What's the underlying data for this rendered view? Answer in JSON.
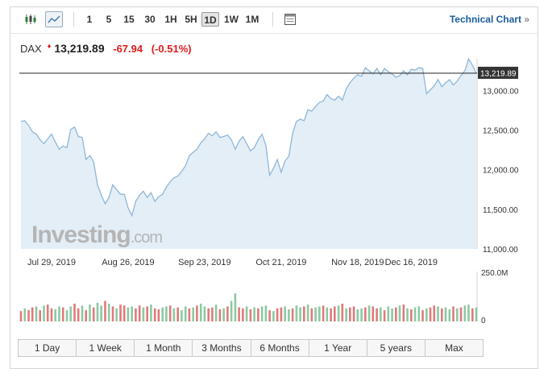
{
  "toolbar": {
    "icons": [
      "candlestick-icon",
      "line-chart-icon",
      "table-icon"
    ],
    "intervals": [
      "1",
      "5",
      "15",
      "30",
      "1H",
      "5H",
      "1D",
      "1W",
      "1M"
    ],
    "selected_interval": "1D",
    "technical_chart_label": "Technical Chart",
    "technical_chart_arrow": "»"
  },
  "quote": {
    "symbol": "DAX",
    "last": "13,219.89",
    "change": "-67.94",
    "change_pct": "(-0.51%)",
    "arrow": "♦",
    "color_negative": "#e01b1b"
  },
  "watermark": {
    "brand": "Investing",
    "suffix": ".com"
  },
  "chart_data": {
    "type": "area",
    "title": "",
    "xlabel": "",
    "ylabel": "",
    "x_tick_labels": [
      "Jul 29, 2019",
      "Aug 26, 2019",
      "Sep 23, 2019",
      "Oct 21, 2019",
      "Nov 18, 2019",
      "Dec 16, 2019"
    ],
    "x_tick_index": [
      8,
      28,
      48,
      68,
      88,
      102
    ],
    "y_tick_values": [
      11000,
      11500,
      12000,
      12500,
      13000
    ],
    "y_tick_labels": [
      "11,000.00",
      "11,500.00",
      "12,000.00",
      "12,500.00",
      "13,000.00"
    ],
    "ylim": [
      11000,
      13300
    ],
    "current_value": 13219.89,
    "current_label": "13,219.89",
    "values": [
      12610,
      12620,
      12560,
      12480,
      12450,
      12380,
      12330,
      12390,
      12450,
      12350,
      12260,
      12300,
      12280,
      12510,
      12540,
      12420,
      12410,
      12130,
      12180,
      12100,
      11810,
      11680,
      11570,
      11650,
      11810,
      11750,
      11690,
      11690,
      11520,
      11420,
      11600,
      11680,
      11730,
      11650,
      11710,
      11600,
      11660,
      11690,
      11780,
      11850,
      11900,
      11920,
      11980,
      12050,
      12180,
      12220,
      12260,
      12340,
      12390,
      12460,
      12430,
      12480,
      12410,
      12420,
      12440,
      12380,
      12260,
      12360,
      12420,
      12330,
      12240,
      12280,
      12380,
      12450,
      12310,
      11930,
      12020,
      12130,
      11970,
      12110,
      12170,
      12460,
      12610,
      12640,
      12620,
      12760,
      12740,
      12800,
      12850,
      12870,
      12950,
      12900,
      12880,
      12930,
      12880,
      13020,
      13100,
      13160,
      13200,
      13180,
      13290,
      13250,
      13210,
      13280,
      13200,
      13280,
      13240,
      13210,
      13170,
      13190,
      13250,
      13200,
      13270,
      13260,
      13290,
      13280,
      12960,
      13010,
      13060,
      13140,
      13050,
      13100,
      13140,
      13070,
      13120,
      13190,
      13250,
      13400,
      13320,
      13219.89
    ],
    "volume": {
      "tick_labels": [
        "250.0M",
        "0"
      ],
      "ylim": [
        0,
        250
      ],
      "values": [
        55,
        70,
        60,
        75,
        80,
        60,
        85,
        90,
        70,
        65,
        80,
        75,
        60,
        80,
        95,
        70,
        85,
        60,
        90,
        75,
        100,
        85,
        110,
        95,
        80,
        70,
        90,
        85,
        75,
        80,
        70,
        85,
        75,
        80,
        90,
        70,
        65,
        75,
        80,
        85,
        70,
        75,
        60,
        80,
        70,
        75,
        85,
        95,
        80,
        70,
        75,
        90,
        65,
        70,
        80,
        110,
        150,
        75,
        70,
        80,
        65,
        75,
        70,
        80,
        85,
        60,
        55,
        70,
        75,
        80,
        65,
        70,
        85,
        75,
        80,
        90,
        70,
        75,
        80,
        85,
        75,
        70,
        80,
        85,
        95,
        70,
        75,
        80,
        65,
        70,
        75,
        85,
        80,
        70,
        75,
        60,
        80,
        70,
        75,
        85,
        90,
        70,
        65,
        75,
        80,
        60,
        70,
        75,
        85,
        80,
        70,
        75,
        65,
        80,
        70,
        75,
        85,
        90,
        70,
        75
      ],
      "colors": [
        "r",
        "g",
        "r",
        "r",
        "g",
        "r",
        "g",
        "r",
        "r",
        "g",
        "g",
        "r",
        "g",
        "g",
        "r",
        "r",
        "g",
        "r",
        "g",
        "r",
        "g",
        "g",
        "r",
        "g",
        "r",
        "g",
        "r",
        "r",
        "g",
        "g",
        "r",
        "r",
        "g",
        "r",
        "g",
        "r",
        "r",
        "g",
        "g",
        "r",
        "g",
        "r",
        "g",
        "g",
        "r",
        "g",
        "r",
        "g",
        "g",
        "r",
        "r",
        "g",
        "r",
        "g",
        "r",
        "g",
        "g",
        "r",
        "r",
        "g",
        "r",
        "g",
        "r",
        "g",
        "g",
        "r",
        "g",
        "r",
        "r",
        "g",
        "g",
        "r",
        "g",
        "g",
        "r",
        "g",
        "r",
        "g",
        "g",
        "r",
        "g",
        "r",
        "r",
        "g",
        "r",
        "g",
        "r",
        "r",
        "g",
        "g",
        "r",
        "g",
        "r",
        "r",
        "g",
        "r",
        "g",
        "g",
        "r",
        "g",
        "r",
        "g",
        "r",
        "g",
        "g",
        "r",
        "g",
        "r",
        "r",
        "g",
        "r",
        "g",
        "g",
        "r",
        "g",
        "r",
        "g",
        "g",
        "r",
        "g"
      ],
      "up_color": "#8cc9a3",
      "down_color": "#e07a7a"
    },
    "line_color": "#8fb7d9",
    "fill_color": "#e3eef7",
    "grid": false
  },
  "ranges": [
    "1 Day",
    "1 Week",
    "1 Month",
    "3 Months",
    "6 Months",
    "1 Year",
    "5 years",
    "Max"
  ]
}
